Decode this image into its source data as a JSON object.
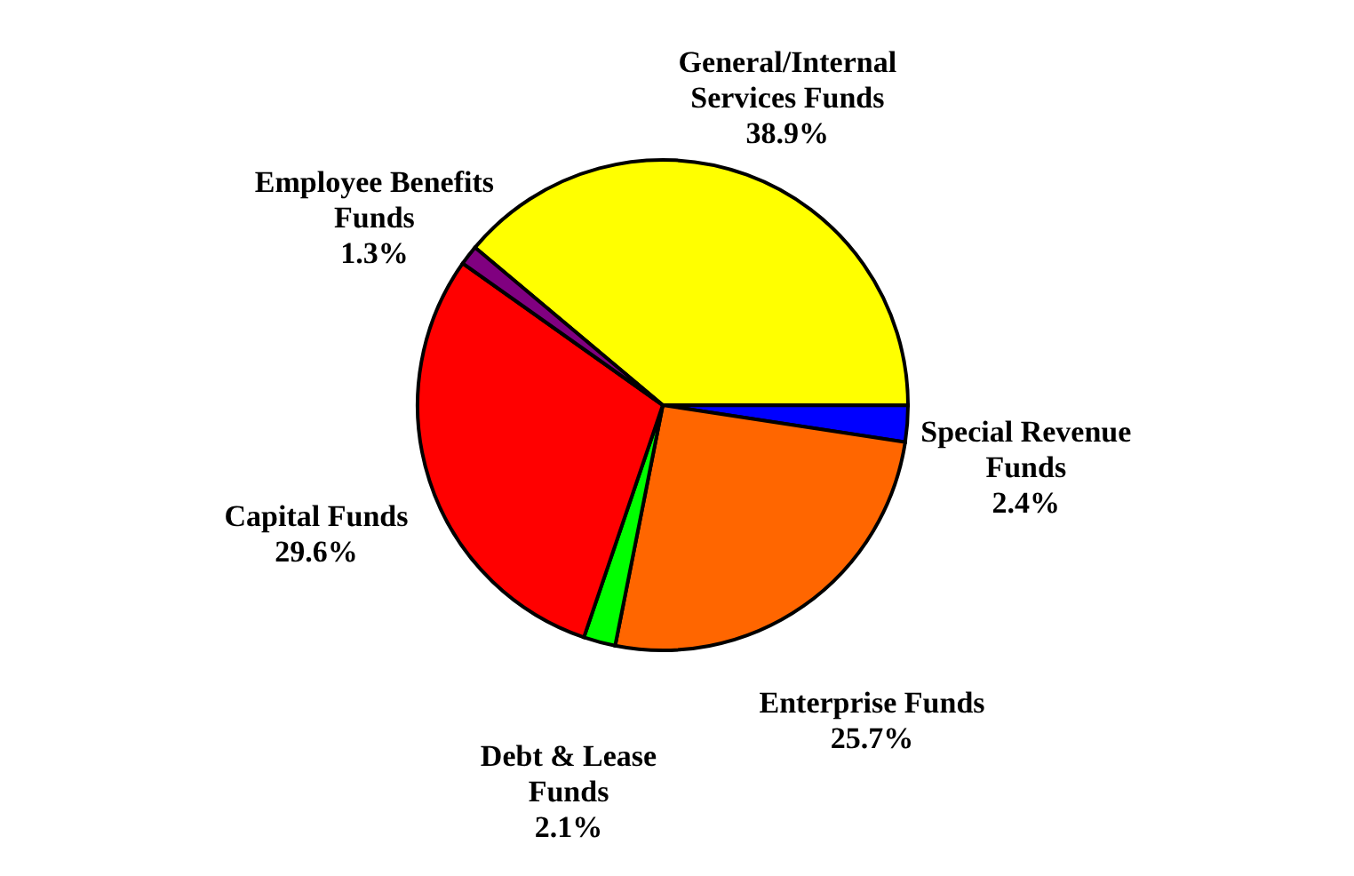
{
  "chart_data": {
    "type": "pie",
    "categories": [
      "General/Internal Services Funds",
      "Special Revenue Funds",
      "Enterprise Funds",
      "Debt & Lease Funds",
      "Capital Funds",
      "Employee Benefits Funds"
    ],
    "values": [
      38.9,
      2.4,
      25.7,
      2.1,
      29.6,
      1.3
    ],
    "value_labels": [
      "38.9%",
      "2.4%",
      "25.7%",
      "2.1%",
      "29.6%",
      "1.3%"
    ],
    "colors": [
      "#ffff00",
      "#0000ff",
      "#ff6600",
      "#00ff00",
      "#ff0000",
      "#800080"
    ],
    "legend": false
  }
}
